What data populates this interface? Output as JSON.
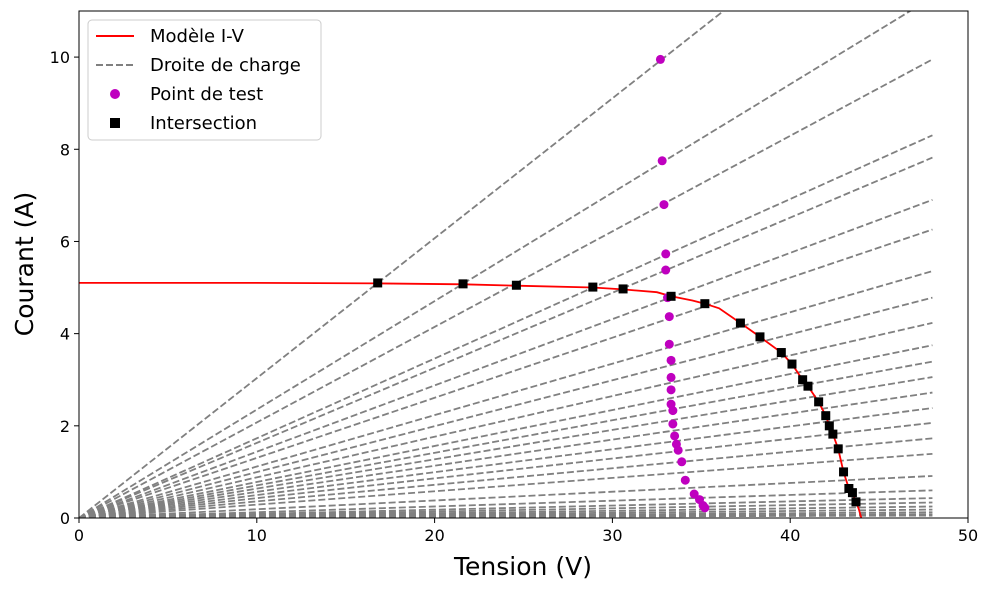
{
  "chart_data": {
    "type": "line",
    "title": "",
    "xlabel": "Tension (V)",
    "ylabel": "Courant (A)",
    "xlim": [
      0,
      50
    ],
    "ylim": [
      0,
      11
    ],
    "xticks": [
      0,
      10,
      20,
      30,
      40,
      50
    ],
    "yticks": [
      0,
      2,
      4,
      6,
      8,
      10
    ],
    "grid": false,
    "legend_position": "top-left",
    "series": [
      {
        "name": "Modèle I-V",
        "kind": "line",
        "color": "#ff0000",
        "x": [
          0,
          10,
          16.8,
          21.6,
          24.6,
          28.9,
          30.6,
          32.5,
          33.3,
          34.5,
          35.2,
          36.0,
          37.2,
          38.3,
          39.5,
          40.1,
          40.7,
          41.0,
          41.6,
          42.0,
          42.2,
          42.4,
          42.7,
          43.0,
          43.3,
          43.5,
          43.7,
          43.85,
          44.0
        ],
        "y": [
          5.1,
          5.1,
          5.09,
          5.07,
          5.04,
          5.0,
          4.96,
          4.9,
          4.81,
          4.72,
          4.65,
          4.55,
          4.23,
          3.93,
          3.59,
          3.34,
          3.0,
          2.86,
          2.52,
          2.22,
          2.0,
          1.82,
          1.5,
          1.0,
          0.64,
          0.55,
          0.35,
          0.2,
          0.0
        ]
      },
      {
        "name": "Droite de charge",
        "kind": "dashed-lines",
        "color": "#808080",
        "x_end": 48,
        "slopes": [
          0.3035,
          0.2353,
          0.2073,
          0.173,
          0.1629,
          0.1438,
          0.1304,
          0.1116,
          0.0996,
          0.0882,
          0.0781,
          0.0707,
          0.0637,
          0.0567,
          0.0497,
          0.043,
          0.036,
          0.029,
          0.019,
          0.0125,
          0.009,
          0.007,
          0.0052,
          0.0038,
          0.0026,
          0.0017,
          0.0011
        ]
      },
      {
        "name": "Point de test",
        "kind": "markers",
        "marker": "circle",
        "color": "#bf00bf",
        "x": [
          32.7,
          32.8,
          32.9,
          33.0,
          33.0,
          33.1,
          33.2,
          33.2,
          33.3,
          33.3,
          33.3,
          33.3,
          33.4,
          33.4,
          33.5,
          33.6,
          33.7,
          33.9,
          34.1,
          34.6,
          34.9,
          35.1,
          35.2
        ],
        "y": [
          9.95,
          7.75,
          6.8,
          5.73,
          5.38,
          4.78,
          4.37,
          3.77,
          3.42,
          3.05,
          2.78,
          2.47,
          2.33,
          2.04,
          1.78,
          1.6,
          1.47,
          1.22,
          0.82,
          0.52,
          0.4,
          0.27,
          0.22
        ]
      },
      {
        "name": "Intersection",
        "kind": "markers",
        "marker": "square",
        "color": "#000000",
        "x": [
          16.8,
          21.6,
          24.6,
          28.9,
          30.6,
          33.3,
          35.2,
          37.2,
          38.3,
          39.5,
          40.1,
          40.7,
          41.0,
          41.6,
          42.0,
          42.2,
          42.4,
          42.7,
          43.0,
          43.3,
          43.5,
          43.7
        ],
        "y": [
          5.1,
          5.08,
          5.05,
          5.01,
          4.97,
          4.81,
          4.65,
          4.23,
          3.93,
          3.59,
          3.34,
          3.0,
          2.86,
          2.52,
          2.22,
          2.0,
          1.82,
          1.5,
          1.0,
          0.64,
          0.55,
          0.35
        ]
      }
    ]
  }
}
